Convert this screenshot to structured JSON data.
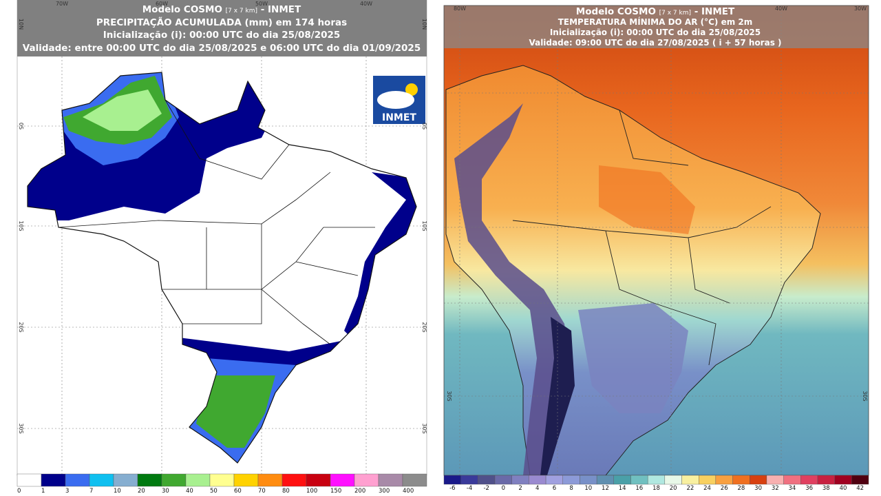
{
  "left_panel": {
    "header": {
      "model": "Modelo COSMO",
      "resolution": "[7 x 7 km]",
      "agency": "- INMET",
      "title": "PRECIPITAÇÃO ACUMULADA (mm) em 174 horas",
      "init": "Inicialização (i): 00:00 UTC do dia 25/08/2025",
      "validity": "Validade: entre 00:00 UTC do dia 25/08/2025 e 06:00 UTC do dia 01/09/2025"
    },
    "logo": "INMET",
    "lon_labels": [
      "70W",
      "60W",
      "50W",
      "40W"
    ],
    "lat_labels": [
      "10N",
      "0S",
      "10S",
      "20S",
      "30S"
    ],
    "legend": {
      "values": [
        0,
        1,
        3,
        7,
        10,
        20,
        30,
        40,
        50,
        60,
        70,
        80,
        100,
        150,
        200,
        300,
        400
      ],
      "colors": [
        "#ffffff",
        "#00008b",
        "#3a6cf0",
        "#10c0f0",
        "#86aed0",
        "#007a10",
        "#40a830",
        "#a8f090",
        "#ffff90",
        "#ffd200",
        "#ff8c10",
        "#ff1010",
        "#c80010",
        "#ff10ff",
        "#ffa0d0",
        "#a88aa8",
        "#8c8c8c"
      ]
    }
  },
  "right_panel": {
    "header": {
      "model": "Modelo COSMO",
      "resolution": "[7 x 7 km]",
      "agency": "- INMET",
      "title": "TEMPERATURA MÍNIMA DO AR (°C) em 2m",
      "init": "Inicialização (i): 00:00 UTC do dia 25/08/2025",
      "validity": "Validade: 09:00 UTC do dia 27/08/2025 ( i + 57 horas )"
    },
    "lon_labels": [
      "80W",
      "40W",
      "30W"
    ],
    "lat_labels": [
      "30S"
    ],
    "legend": {
      "values": [
        -6,
        -4,
        -2,
        0,
        2,
        4,
        6,
        8,
        10,
        12,
        14,
        16,
        18,
        20,
        22,
        24,
        26,
        28,
        30,
        32,
        34,
        36,
        38,
        40,
        42
      ],
      "colors": [
        "#1a1a8a",
        "#3a3a9a",
        "#50508a",
        "#6a6aa8",
        "#8080c0",
        "#9a8ad0",
        "#a0a0e0",
        "#8c9ad8",
        "#7890c8",
        "#5f8fb0",
        "#4aa0a8",
        "#70c0c0",
        "#b0e8e0",
        "#e8f8e8",
        "#f8f0a0",
        "#f8d060",
        "#f8a040",
        "#f07020",
        "#d84010",
        "#f8b0b0",
        "#f07080",
        "#e04060",
        "#c82040",
        "#a00020",
        "#500010"
      ]
    }
  }
}
